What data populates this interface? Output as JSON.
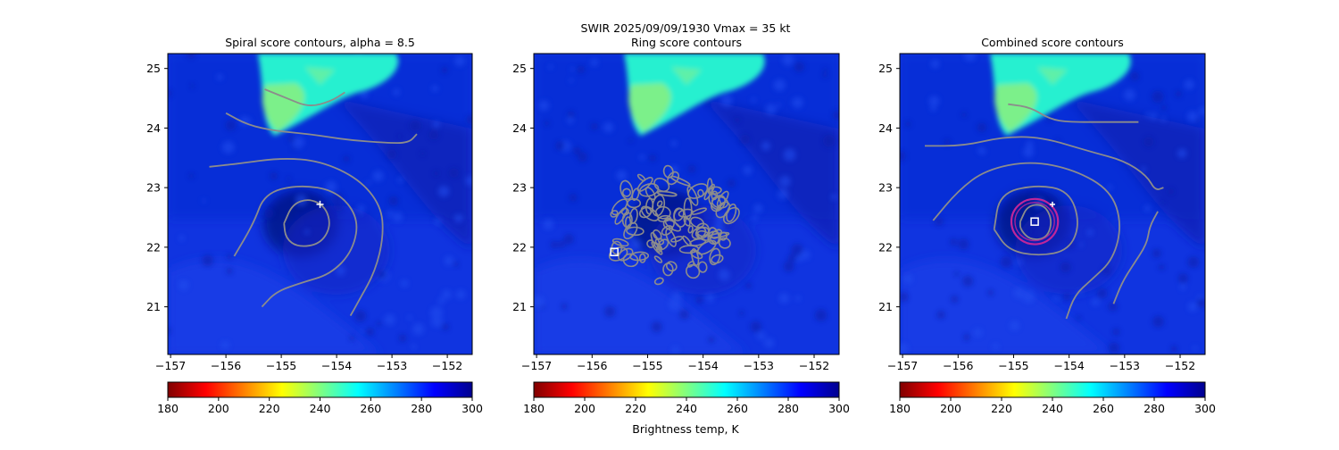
{
  "figure": {
    "suptitle_line1": "SWIR  2025/09/09/1930    Vmax = 35 kt",
    "colorbar_label": "Brightness temp, K"
  },
  "colorbar": {
    "ticks": [
      180,
      200,
      220,
      240,
      260,
      280,
      300
    ],
    "stops": [
      "#800000",
      "#ff0000",
      "#ff8000",
      "#ffff00",
      "#80ff80",
      "#00ffff",
      "#0080ff",
      "#0000ff",
      "#00008f"
    ],
    "cmap": "jet_r"
  },
  "colors": {
    "background": "#1034e0",
    "background_dark": "#0a22b8",
    "eye": "#07168a",
    "cold_cloud_cyan": "#27f0d0",
    "cold_cloud_green": "#7cf08a",
    "contour": "#8c8c8c",
    "ring_fit": "#c0269a"
  },
  "chart_data": [
    {
      "type": "heatmap",
      "title": "Spiral score contours, alpha =  8.5",
      "xlim": [
        -157.05,
        -151.55
      ],
      "ylim": [
        20.2,
        25.25
      ],
      "xticks": [
        -157,
        -156,
        -155,
        -154,
        -153,
        -152
      ],
      "yticks": [
        21,
        22,
        23,
        24,
        25
      ],
      "xtick_labels": [
        "−157",
        "−156",
        "−155",
        "−154",
        "−153",
        "−152"
      ],
      "ytick_labels": [
        "21",
        "22",
        "23",
        "24",
        "25"
      ],
      "zlabel": "Brightness temp, K",
      "zlim": [
        180,
        300
      ],
      "marker": {
        "symbol": "plus",
        "lon": -154.3,
        "lat": 22.72
      },
      "contours": [
        [
          [
            -154.95,
            22.4
          ],
          [
            -154.8,
            22.72
          ],
          [
            -154.5,
            22.82
          ],
          [
            -154.2,
            22.68
          ],
          [
            -154.1,
            22.35
          ],
          [
            -154.3,
            22.05
          ],
          [
            -154.7,
            22.0
          ],
          [
            -154.92,
            22.15
          ],
          [
            -154.95,
            22.4
          ]
        ],
        [
          [
            -155.85,
            21.85
          ],
          [
            -155.5,
            22.4
          ],
          [
            -155.3,
            22.9
          ],
          [
            -154.7,
            23.05
          ],
          [
            -154.0,
            22.95
          ],
          [
            -153.6,
            22.5
          ],
          [
            -153.7,
            21.95
          ],
          [
            -154.1,
            21.55
          ],
          [
            -154.65,
            21.4
          ],
          [
            -155.1,
            21.25
          ],
          [
            -155.35,
            21.0
          ]
        ],
        [
          [
            -156.3,
            23.35
          ],
          [
            -155.8,
            23.4
          ],
          [
            -155.0,
            23.5
          ],
          [
            -154.3,
            23.45
          ],
          [
            -153.6,
            23.15
          ],
          [
            -153.2,
            22.7
          ],
          [
            -153.15,
            22.2
          ],
          [
            -153.3,
            21.6
          ],
          [
            -153.6,
            21.1
          ],
          [
            -153.75,
            20.85
          ]
        ],
        [
          [
            -156.0,
            24.25
          ],
          [
            -155.6,
            24.05
          ],
          [
            -155.1,
            23.95
          ],
          [
            -154.5,
            23.9
          ],
          [
            -153.8,
            23.8
          ],
          [
            -153.1,
            23.75
          ],
          [
            -152.7,
            23.75
          ],
          [
            -152.55,
            23.9
          ]
        ],
        [
          [
            -155.3,
            24.65
          ],
          [
            -154.9,
            24.5
          ],
          [
            -154.5,
            24.35
          ],
          [
            -154.1,
            24.45
          ],
          [
            -153.85,
            24.6
          ]
        ]
      ]
    },
    {
      "type": "heatmap",
      "title": "Ring score contours",
      "xlim": [
        -157.05,
        -151.55
      ],
      "ylim": [
        20.2,
        25.25
      ],
      "xticks": [
        -157,
        -156,
        -155,
        -154,
        -153,
        -152
      ],
      "yticks": [
        21,
        22,
        23,
        24,
        25
      ],
      "xtick_labels": [
        "−157",
        "−156",
        "−155",
        "−154",
        "−153",
        "−152"
      ],
      "ytick_labels": [
        "21",
        "22",
        "23",
        "24",
        "25"
      ],
      "zlabel": "Brightness temp, K",
      "zlim": [
        180,
        300
      ],
      "marker": {
        "symbol": "square",
        "lon": -155.6,
        "lat": 21.92
      },
      "ring_region": {
        "lon": -154.55,
        "lat": 22.35,
        "rlon": 1.15,
        "rlat": 0.95
      }
    },
    {
      "type": "heatmap",
      "title": "Combined score contours",
      "xlim": [
        -157.05,
        -151.55
      ],
      "ylim": [
        20.2,
        25.25
      ],
      "xticks": [
        -157,
        -156,
        -155,
        -154,
        -153,
        -152
      ],
      "yticks": [
        21,
        22,
        23,
        24,
        25
      ],
      "xtick_labels": [
        "−157",
        "−156",
        "−155",
        "−154",
        "−153",
        "−152"
      ],
      "ytick_labels": [
        "21",
        "22",
        "23",
        "24",
        "25"
      ],
      "zlabel": "Brightness temp, K",
      "zlim": [
        180,
        300
      ],
      "marker": {
        "symbol": "square",
        "lon": -154.62,
        "lat": 22.43
      },
      "plus_marker": {
        "lon": -154.3,
        "lat": 22.72
      },
      "fit_circle": {
        "lon": -154.62,
        "lat": 22.43,
        "rlon": 0.42,
        "rlat": 0.38
      },
      "contours": [
        [
          [
            -154.88,
            22.43
          ],
          [
            -154.75,
            22.7
          ],
          [
            -154.45,
            22.72
          ],
          [
            -154.3,
            22.45
          ],
          [
            -154.4,
            22.15
          ],
          [
            -154.7,
            22.12
          ],
          [
            -154.88,
            22.3
          ],
          [
            -154.88,
            22.43
          ]
        ],
        [
          [
            -155.35,
            22.3
          ],
          [
            -155.25,
            22.9
          ],
          [
            -154.6,
            23.05
          ],
          [
            -154.0,
            22.95
          ],
          [
            -153.8,
            22.4
          ],
          [
            -154.0,
            21.95
          ],
          [
            -154.55,
            21.85
          ],
          [
            -155.1,
            21.95
          ],
          [
            -155.35,
            22.3
          ]
        ],
        [
          [
            -156.45,
            22.45
          ],
          [
            -156.0,
            22.95
          ],
          [
            -155.5,
            23.3
          ],
          [
            -154.7,
            23.45
          ],
          [
            -153.9,
            23.3
          ],
          [
            -153.25,
            22.95
          ],
          [
            -153.05,
            22.4
          ],
          [
            -153.2,
            21.8
          ],
          [
            -153.6,
            21.45
          ],
          [
            -153.9,
            21.2
          ],
          [
            -154.05,
            20.8
          ]
        ],
        [
          [
            -156.6,
            23.7
          ],
          [
            -155.9,
            23.7
          ],
          [
            -155.2,
            23.85
          ],
          [
            -154.5,
            23.85
          ],
          [
            -153.6,
            23.6
          ],
          [
            -153.0,
            23.45
          ],
          [
            -152.6,
            23.2
          ],
          [
            -152.45,
            22.95
          ],
          [
            -152.3,
            23.0
          ]
        ],
        [
          [
            -155.1,
            24.4
          ],
          [
            -154.7,
            24.35
          ],
          [
            -154.35,
            24.15
          ],
          [
            -154.0,
            24.1
          ],
          [
            -153.3,
            24.1
          ],
          [
            -152.75,
            24.1
          ]
        ],
        [
          [
            -152.4,
            22.6
          ],
          [
            -152.55,
            22.35
          ],
          [
            -152.6,
            22.05
          ],
          [
            -152.85,
            21.7
          ],
          [
            -153.05,
            21.4
          ],
          [
            -153.2,
            21.05
          ]
        ]
      ]
    }
  ]
}
